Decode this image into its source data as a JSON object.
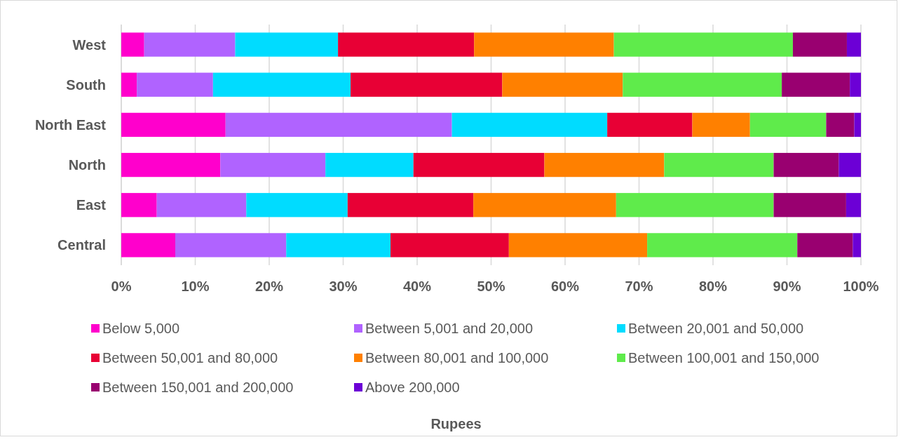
{
  "chart_data": {
    "type": "bar",
    "orientation": "horizontal",
    "stacked": true,
    "annotations": [
      "Rupees"
    ],
    "categories": [
      "West",
      "South",
      "North East",
      "North",
      "East",
      "Central"
    ],
    "series": [
      {
        "name": "Below 5,000",
        "color": "#ff00cc",
        "values": [
          3.1,
          2.1,
          14.1,
          13.4,
          4.8,
          7.3
        ]
      },
      {
        "name": "Between 5,001 and 20,000",
        "color": "#b063ff",
        "values": [
          12.3,
          10.3,
          30.6,
          14.2,
          12.1,
          15.0
        ]
      },
      {
        "name": "Between 20,001 and 50,000",
        "color": "#00dcff",
        "values": [
          13.9,
          18.6,
          21.0,
          11.9,
          13.7,
          14.1
        ]
      },
      {
        "name": "Between 50,001 and 80,000",
        "color": "#e80035",
        "values": [
          18.4,
          20.5,
          11.5,
          17.7,
          17.0,
          16.0
        ]
      },
      {
        "name": "Between 80,001 and 100,000",
        "color": "#ff8000",
        "values": [
          18.9,
          16.3,
          7.8,
          16.2,
          19.3,
          18.7
        ]
      },
      {
        "name": "Between 100,001 and 150,000",
        "color": "#5feb4b",
        "values": [
          24.2,
          21.5,
          10.3,
          14.8,
          21.3,
          20.3
        ]
      },
      {
        "name": "Between 150,001 and 200,000",
        "color": "#990070",
        "values": [
          7.3,
          9.2,
          3.8,
          8.8,
          9.8,
          7.5
        ]
      },
      {
        "name": "Above 200,000",
        "color": "#6c00d6",
        "values": [
          1.9,
          1.5,
          0.9,
          3.0,
          2.0,
          1.1
        ]
      }
    ],
    "xlim": [
      0,
      100
    ],
    "xticks": [
      {
        "value": 0,
        "label": "0%"
      },
      {
        "value": 10,
        "label": "10%"
      },
      {
        "value": 20,
        "label": "20%"
      },
      {
        "value": 30,
        "label": "30%"
      },
      {
        "value": 40,
        "label": "40%"
      },
      {
        "value": 50,
        "label": "50%"
      },
      {
        "value": 60,
        "label": "60%"
      },
      {
        "value": 70,
        "label": "70%"
      },
      {
        "value": 80,
        "label": "80%"
      },
      {
        "value": 90,
        "label": "90%"
      },
      {
        "value": 100,
        "label": "100%"
      }
    ],
    "grid": "x",
    "legend": "bottom"
  }
}
